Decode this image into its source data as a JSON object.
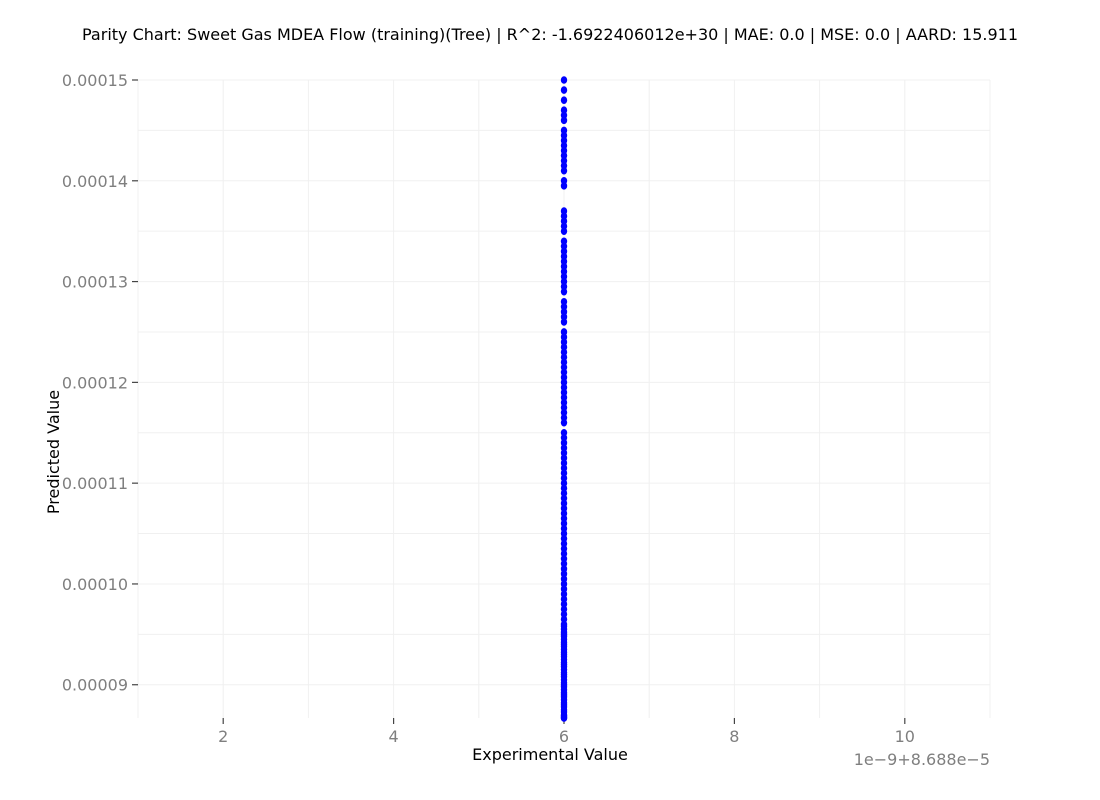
{
  "chart_data": {
    "type": "scatter",
    "title": "Parity Chart: Sweet Gas MDEA Flow (training)(Tree) | R^2: -1.6922406012e+30 | MAE: 0.0 | MSE: 0.0 | AARD: 15.911",
    "xlabel": "Experimental Value",
    "ylabel": "Predicted Value",
    "x_offset_label": "1e−9+8.688e−5",
    "xlim": [
      1,
      11
    ],
    "ylim": [
      8.67e-05,
      0.00015
    ],
    "x_ticks": [
      2,
      4,
      6,
      8,
      10
    ],
    "x_tick_labels": [
      "2",
      "4",
      "6",
      "8",
      "10"
    ],
    "y_ticks": [
      9e-05,
      0.0001,
      0.00011,
      0.00012,
      0.00013,
      0.00014,
      0.00015
    ],
    "y_tick_labels": [
      "0.00009",
      "0.00010",
      "0.00011",
      "0.00012",
      "0.00013",
      "0.00014",
      "0.00015"
    ],
    "grid": true,
    "marker_color": "#0000ff",
    "series": [
      {
        "x": [
          6,
          6,
          6,
          6,
          6,
          6,
          6,
          6,
          6,
          6,
          6,
          6,
          6,
          6,
          6,
          6,
          6,
          6,
          6,
          6,
          6,
          6,
          6,
          6,
          6,
          6,
          6,
          6,
          6,
          6,
          6,
          6,
          6,
          6,
          6,
          6,
          6,
          6,
          6,
          6,
          6,
          6,
          6,
          6,
          6,
          6,
          6,
          6,
          6,
          6,
          6,
          6,
          6,
          6,
          6,
          6,
          6,
          6,
          6,
          6,
          6,
          6,
          6,
          6,
          6,
          6,
          6,
          6,
          6,
          6,
          6,
          6,
          6,
          6,
          6,
          6,
          6,
          6,
          6,
          6,
          6,
          6,
          6,
          6,
          6,
          6,
          6,
          6,
          6,
          6,
          6,
          6,
          6,
          6,
          6,
          6
        ],
        "y": [
          0.00015,
          0.000149,
          0.000148,
          0.000147,
          0.0001465,
          0.000146,
          0.000145,
          0.0001445,
          0.000144,
          0.0001435,
          0.000143,
          0.0001425,
          0.000142,
          0.0001415,
          0.000141,
          0.00014,
          0.0001395,
          0.000137,
          0.0001365,
          0.000136,
          0.0001355,
          0.000135,
          0.000134,
          0.0001335,
          0.000133,
          0.0001325,
          0.000132,
          0.0001315,
          0.000131,
          0.0001305,
          0.00013,
          0.0001295,
          0.000129,
          0.000128,
          0.0001275,
          0.000127,
          0.0001265,
          0.000126,
          0.000125,
          0.0001245,
          0.000124,
          0.0001235,
          0.000123,
          0.0001225,
          0.000122,
          0.0001215,
          0.000121,
          0.0001205,
          0.00012,
          0.0001195,
          0.000119,
          0.0001185,
          0.000118,
          0.0001175,
          0.000117,
          0.0001165,
          0.000116,
          0.000115,
          0.0001145,
          0.000114,
          0.0001135,
          0.000113,
          0.0001125,
          0.000112,
          0.0001115,
          0.000111,
          0.0001105,
          0.00011,
          0.0001095,
          0.000109,
          0.0001085,
          0.000108,
          0.0001075,
          0.000107,
          0.0001065,
          0.000106,
          0.0001055,
          0.000105,
          0.0001045,
          0.000104,
          0.0001035,
          0.000103,
          0.0001025,
          0.000102,
          0.0001015,
          0.000101,
          0.0001005,
          0.0001,
          9.95e-05,
          9.9e-05,
          9.85e-05,
          9.8e-05,
          9.75e-05,
          9.7e-05,
          9.65e-05,
          9.6e-05
        ]
      },
      {
        "x": [
          6,
          6,
          6,
          6,
          6,
          6,
          6,
          6,
          6,
          6,
          6,
          6,
          6,
          6,
          6,
          6,
          6,
          6,
          6,
          6,
          6,
          6,
          6,
          6,
          6,
          6,
          6,
          6,
          6,
          6,
          6,
          6,
          6,
          6,
          6,
          6,
          6,
          6,
          6,
          6
        ],
        "y": [
          9.58e-05,
          9.55e-05,
          9.52e-05,
          9.5e-05,
          9.48e-05,
          9.45e-05,
          9.42e-05,
          9.4e-05,
          9.38e-05,
          9.35e-05,
          9.32e-05,
          9.3e-05,
          9.28e-05,
          9.25e-05,
          9.22e-05,
          9.2e-05,
          9.18e-05,
          9.15e-05,
          9.12e-05,
          9.1e-05,
          9.08e-05,
          9.05e-05,
          9.02e-05,
          9e-05,
          8.98e-05,
          8.95e-05,
          8.92e-05,
          8.9e-05,
          8.88e-05,
          8.85e-05,
          8.82e-05,
          8.8e-05,
          8.78e-05,
          8.75e-05,
          8.73e-05,
          8.7e-05,
          8.69e-05,
          8.68e-05,
          8.67e-05,
          8.67e-05
        ]
      }
    ]
  }
}
